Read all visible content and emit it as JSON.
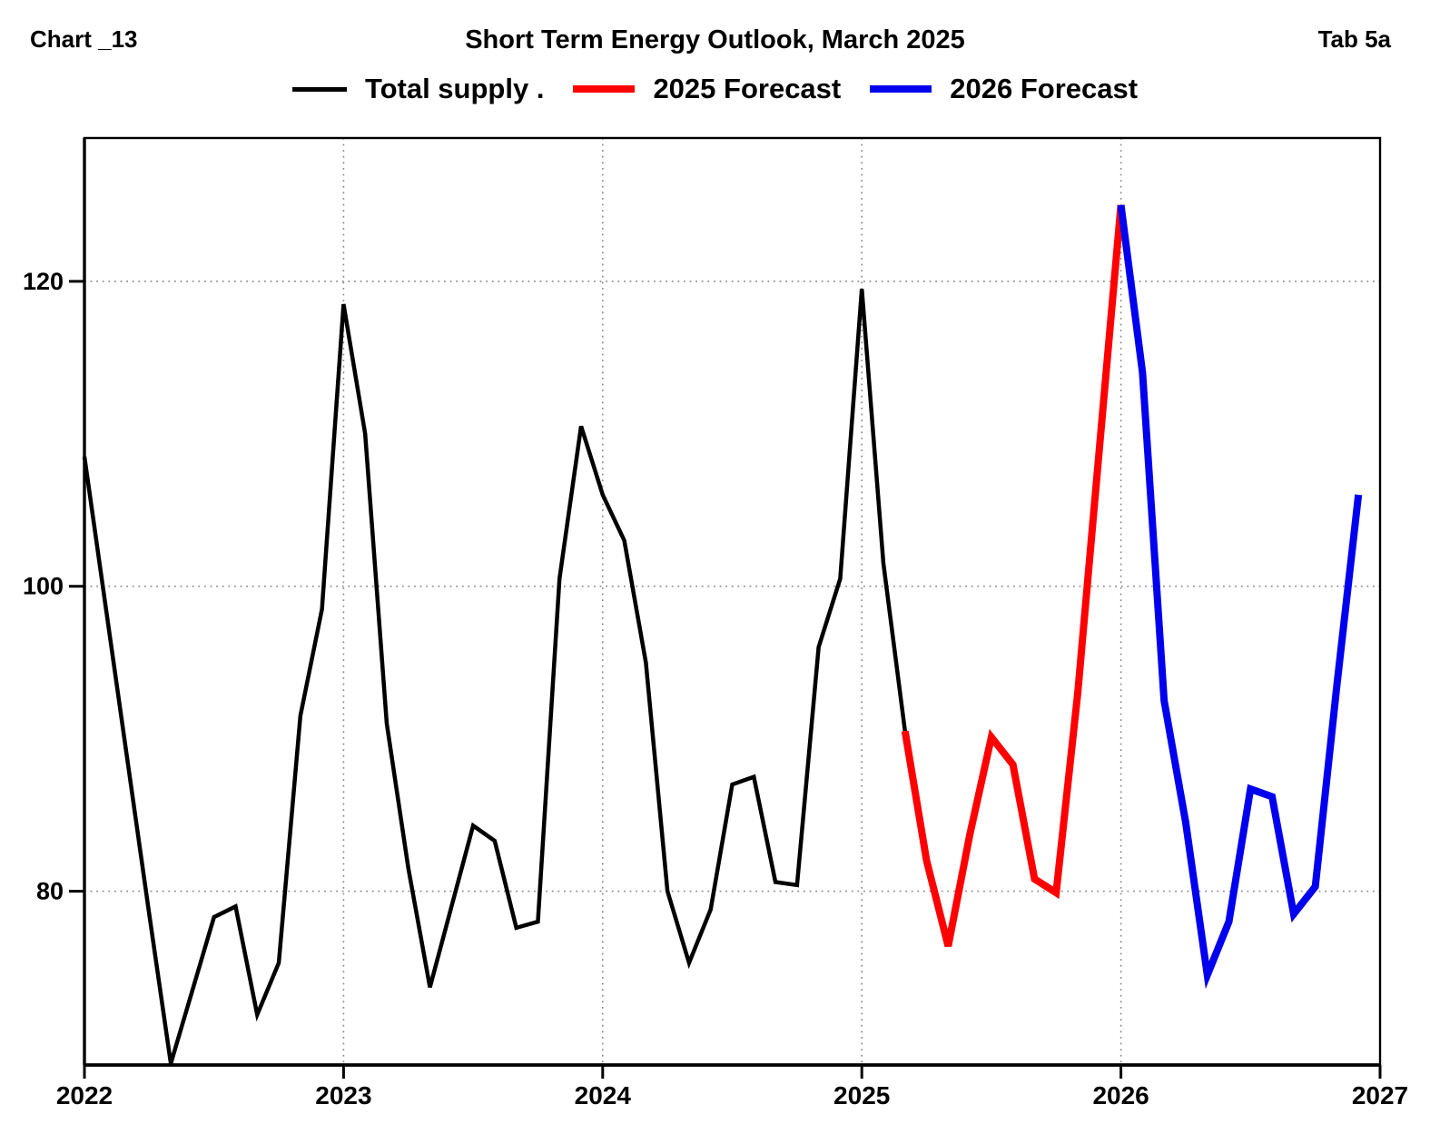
{
  "header": {
    "chart_label": "Chart _13",
    "title": "Short Term Energy Outlook, March 2025",
    "tab_label": "Tab 5a"
  },
  "legend": [
    {
      "label": "Total supply .",
      "color": "#000000",
      "swatch_width": 60,
      "swatch_thickness": 5
    },
    {
      "label": "2025 Forecast",
      "color": "#ff0000",
      "swatch_width": 68,
      "swatch_thickness": 8
    },
    {
      "label": "2026 Forecast",
      "color": "#0000ee",
      "swatch_width": 68,
      "swatch_thickness": 8
    }
  ],
  "chart_data": {
    "type": "line",
    "title": "Short Term Energy Outlook, March 2025",
    "x_unit": "month",
    "x_start": "2022-01",
    "x_end": "2026-12",
    "xticks": [
      "2022",
      "2023",
      "2024",
      "2025",
      "2026",
      "2027"
    ],
    "yticks": [
      80,
      100,
      120
    ],
    "ylim": [
      68.6,
      129.4
    ],
    "xlim_years": [
      2022,
      2027
    ],
    "grid": "dotted",
    "legend_position": "top",
    "series": [
      {
        "name": "Total supply .",
        "color": "#000000",
        "width": 4.5,
        "start_month_index": 0,
        "values": [
          108.5,
          98.5,
          88.5,
          78.5,
          68.7,
          73.5,
          78.3,
          79.0,
          71.9,
          75.3,
          91.5,
          98.5,
          118.5,
          110.0,
          91.0,
          81.5,
          73.7,
          79.0,
          84.3,
          83.3,
          77.6,
          78.0,
          100.5,
          110.5,
          106.0,
          103.0,
          95.0,
          80.0,
          75.3,
          78.8,
          87.0,
          87.5,
          80.6,
          80.4,
          96.0,
          100.5,
          119.5,
          101.5,
          90.5
        ]
      },
      {
        "name": "2025 Forecast",
        "color": "#ff0000",
        "width": 8,
        "start_month_index": 38,
        "values": [
          90.5,
          82.0,
          76.4,
          83.7,
          90.1,
          88.3,
          80.8,
          79.9,
          93.0,
          109.0,
          125.0
        ]
      },
      {
        "name": "2026 Forecast",
        "color": "#0000ee",
        "width": 8,
        "start_month_index": 48,
        "values": [
          125.0,
          114.0,
          92.5,
          84.5,
          74.5,
          78.0,
          86.7,
          86.2,
          78.5,
          80.3,
          93.5,
          106.0
        ]
      }
    ]
  }
}
